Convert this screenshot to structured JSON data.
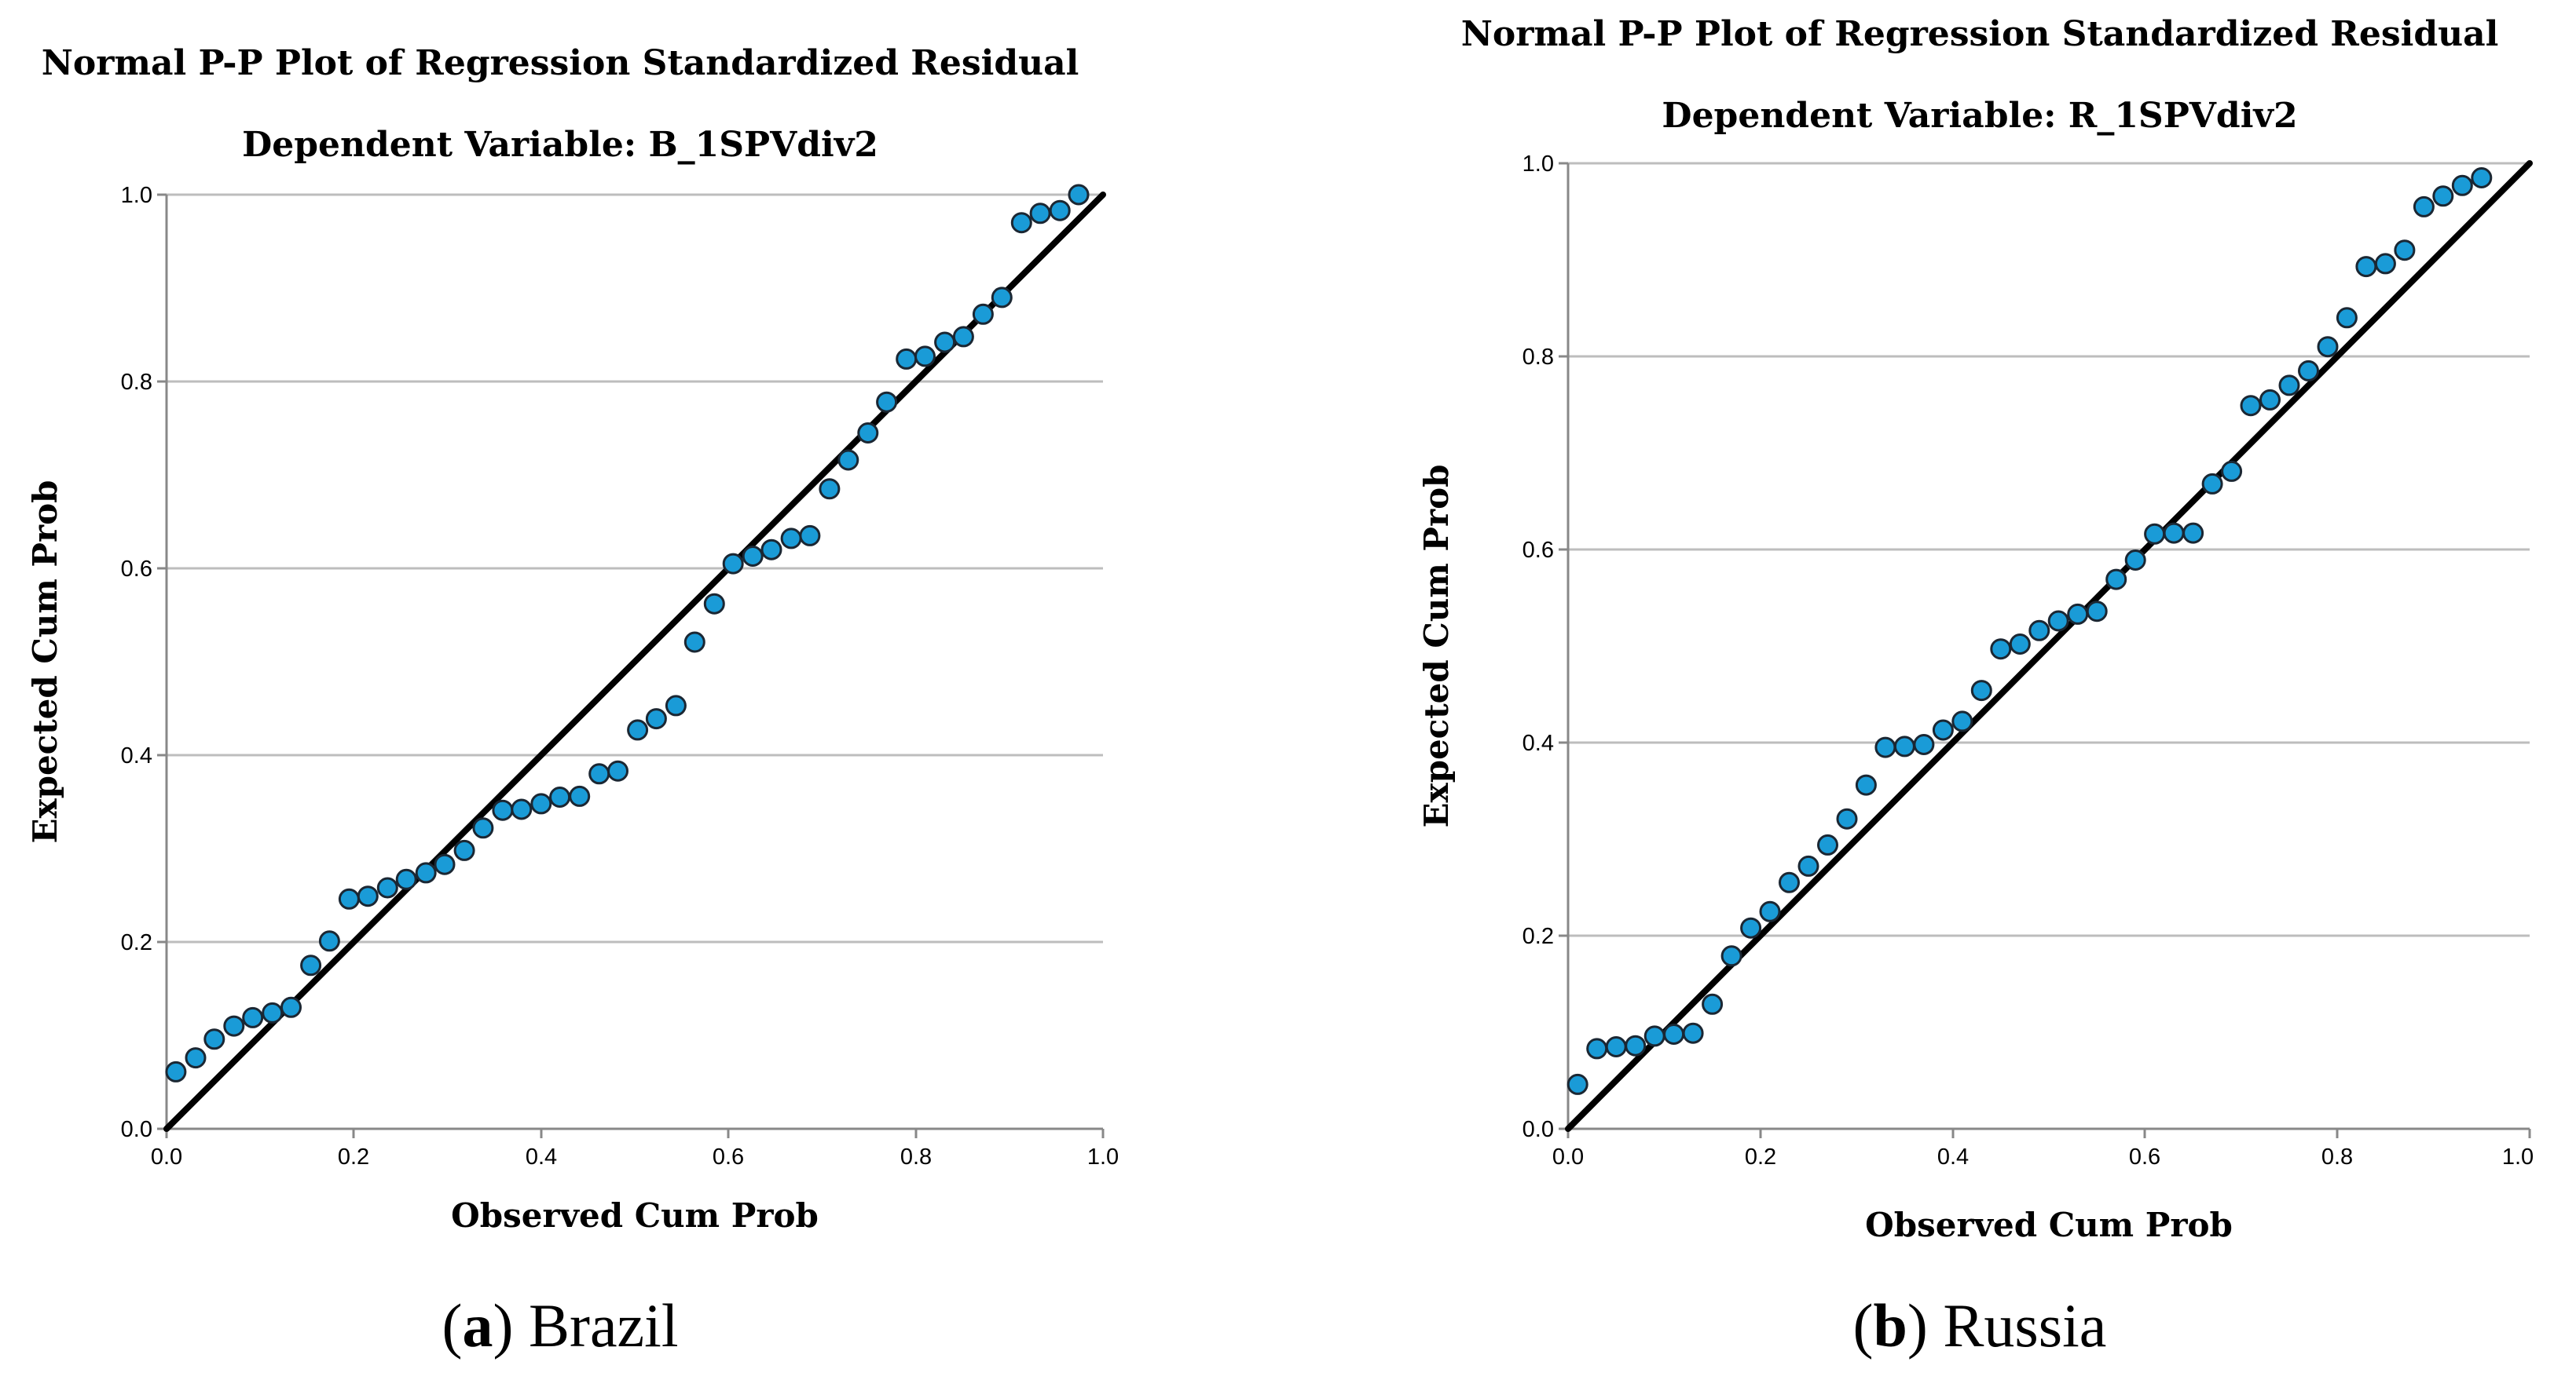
{
  "colors": {
    "point_fill": "#1A9BD7",
    "point_stroke": "#1B2733",
    "diagonal": "#000000",
    "grid": "#BDBDBD",
    "axis": "#888888"
  },
  "chart_data": [
    {
      "id": "brazil",
      "type": "scatter",
      "title": "Normal P-P Plot of Regression Standardized Residual",
      "subtitle": "Dependent Variable: B_1SPVdiv2",
      "xlabel": "Observed Cum Prob",
      "ylabel": "Expected Cum Prob",
      "xlim": [
        0.0,
        1.0
      ],
      "ylim": [
        0.0,
        1.0
      ],
      "xticks": [
        "0.0",
        "0.2",
        "0.4",
        "0.6",
        "0.8",
        "1.0"
      ],
      "yticks": [
        "0.0",
        "0.2",
        "0.4",
        "0.6",
        "0.8",
        "1.0"
      ],
      "grid": "horizontal",
      "reference_line": [
        [
          0,
          0
        ],
        [
          1,
          1
        ]
      ],
      "caption_letter": "a",
      "caption_text": "Brazil",
      "points": [
        [
          0.01,
          0.061
        ],
        [
          0.031,
          0.076
        ],
        [
          0.051,
          0.096
        ],
        [
          0.072,
          0.11
        ],
        [
          0.092,
          0.119
        ],
        [
          0.113,
          0.124
        ],
        [
          0.133,
          0.13
        ],
        [
          0.154,
          0.175
        ],
        [
          0.174,
          0.201
        ],
        [
          0.195,
          0.246
        ],
        [
          0.215,
          0.249
        ],
        [
          0.236,
          0.258
        ],
        [
          0.256,
          0.267
        ],
        [
          0.277,
          0.274
        ],
        [
          0.297,
          0.283
        ],
        [
          0.318,
          0.298
        ],
        [
          0.338,
          0.322
        ],
        [
          0.359,
          0.341
        ],
        [
          0.379,
          0.342
        ],
        [
          0.4,
          0.348
        ],
        [
          0.42,
          0.355
        ],
        [
          0.441,
          0.356
        ],
        [
          0.462,
          0.38
        ],
        [
          0.482,
          0.383
        ],
        [
          0.503,
          0.427
        ],
        [
          0.523,
          0.439
        ],
        [
          0.544,
          0.453
        ],
        [
          0.564,
          0.521
        ],
        [
          0.585,
          0.562
        ],
        [
          0.605,
          0.605
        ],
        [
          0.626,
          0.613
        ],
        [
          0.646,
          0.62
        ],
        [
          0.667,
          0.632
        ],
        [
          0.687,
          0.635
        ],
        [
          0.708,
          0.685
        ],
        [
          0.728,
          0.716
        ],
        [
          0.749,
          0.745
        ],
        [
          0.769,
          0.778
        ],
        [
          0.79,
          0.824
        ],
        [
          0.81,
          0.827
        ],
        [
          0.831,
          0.842
        ],
        [
          0.851,
          0.848
        ],
        [
          0.872,
          0.872
        ],
        [
          0.892,
          0.89
        ],
        [
          0.913,
          0.97
        ],
        [
          0.933,
          0.98
        ],
        [
          0.954,
          0.983
        ],
        [
          0.974,
          1.0
        ]
      ]
    },
    {
      "id": "russia",
      "type": "scatter",
      "title": "Normal P-P Plot of Regression Standardized Residual",
      "subtitle": "Dependent Variable: R_1SPVdiv2",
      "xlabel": "Observed Cum Prob",
      "ylabel": "Expected Cum Prob",
      "xlim": [
        0.0,
        1.0
      ],
      "ylim": [
        0.0,
        1.0
      ],
      "xticks": [
        "0.0",
        "0.2",
        "0.4",
        "0.6",
        "0.8",
        "1.0"
      ],
      "yticks": [
        "0.0",
        "0.2",
        "0.4",
        "0.6",
        "0.8",
        "1.0"
      ],
      "grid": "horizontal",
      "reference_line": [
        [
          0,
          0
        ],
        [
          1,
          1
        ]
      ],
      "caption_letter": "b",
      "caption_text": "Russia",
      "points": [
        [
          0.01,
          0.046
        ],
        [
          0.03,
          0.083
        ],
        [
          0.05,
          0.085
        ],
        [
          0.07,
          0.086
        ],
        [
          0.09,
          0.096
        ],
        [
          0.11,
          0.098
        ],
        [
          0.13,
          0.099
        ],
        [
          0.15,
          0.129
        ],
        [
          0.17,
          0.179
        ],
        [
          0.19,
          0.208
        ],
        [
          0.21,
          0.225
        ],
        [
          0.23,
          0.255
        ],
        [
          0.25,
          0.272
        ],
        [
          0.27,
          0.294
        ],
        [
          0.29,
          0.321
        ],
        [
          0.31,
          0.356
        ],
        [
          0.33,
          0.395
        ],
        [
          0.35,
          0.396
        ],
        [
          0.37,
          0.398
        ],
        [
          0.39,
          0.413
        ],
        [
          0.41,
          0.422
        ],
        [
          0.43,
          0.454
        ],
        [
          0.45,
          0.497
        ],
        [
          0.47,
          0.502
        ],
        [
          0.49,
          0.516
        ],
        [
          0.51,
          0.526
        ],
        [
          0.53,
          0.533
        ],
        [
          0.55,
          0.536
        ],
        [
          0.57,
          0.569
        ],
        [
          0.59,
          0.589
        ],
        [
          0.61,
          0.616
        ],
        [
          0.63,
          0.617
        ],
        [
          0.65,
          0.617
        ],
        [
          0.67,
          0.668
        ],
        [
          0.69,
          0.681
        ],
        [
          0.71,
          0.749
        ],
        [
          0.73,
          0.755
        ],
        [
          0.75,
          0.77
        ],
        [
          0.77,
          0.785
        ],
        [
          0.79,
          0.81
        ],
        [
          0.81,
          0.84
        ],
        [
          0.83,
          0.893
        ],
        [
          0.85,
          0.896
        ],
        [
          0.87,
          0.91
        ],
        [
          0.89,
          0.955
        ],
        [
          0.91,
          0.966
        ],
        [
          0.93,
          0.977
        ],
        [
          0.95,
          0.985
        ]
      ]
    }
  ]
}
